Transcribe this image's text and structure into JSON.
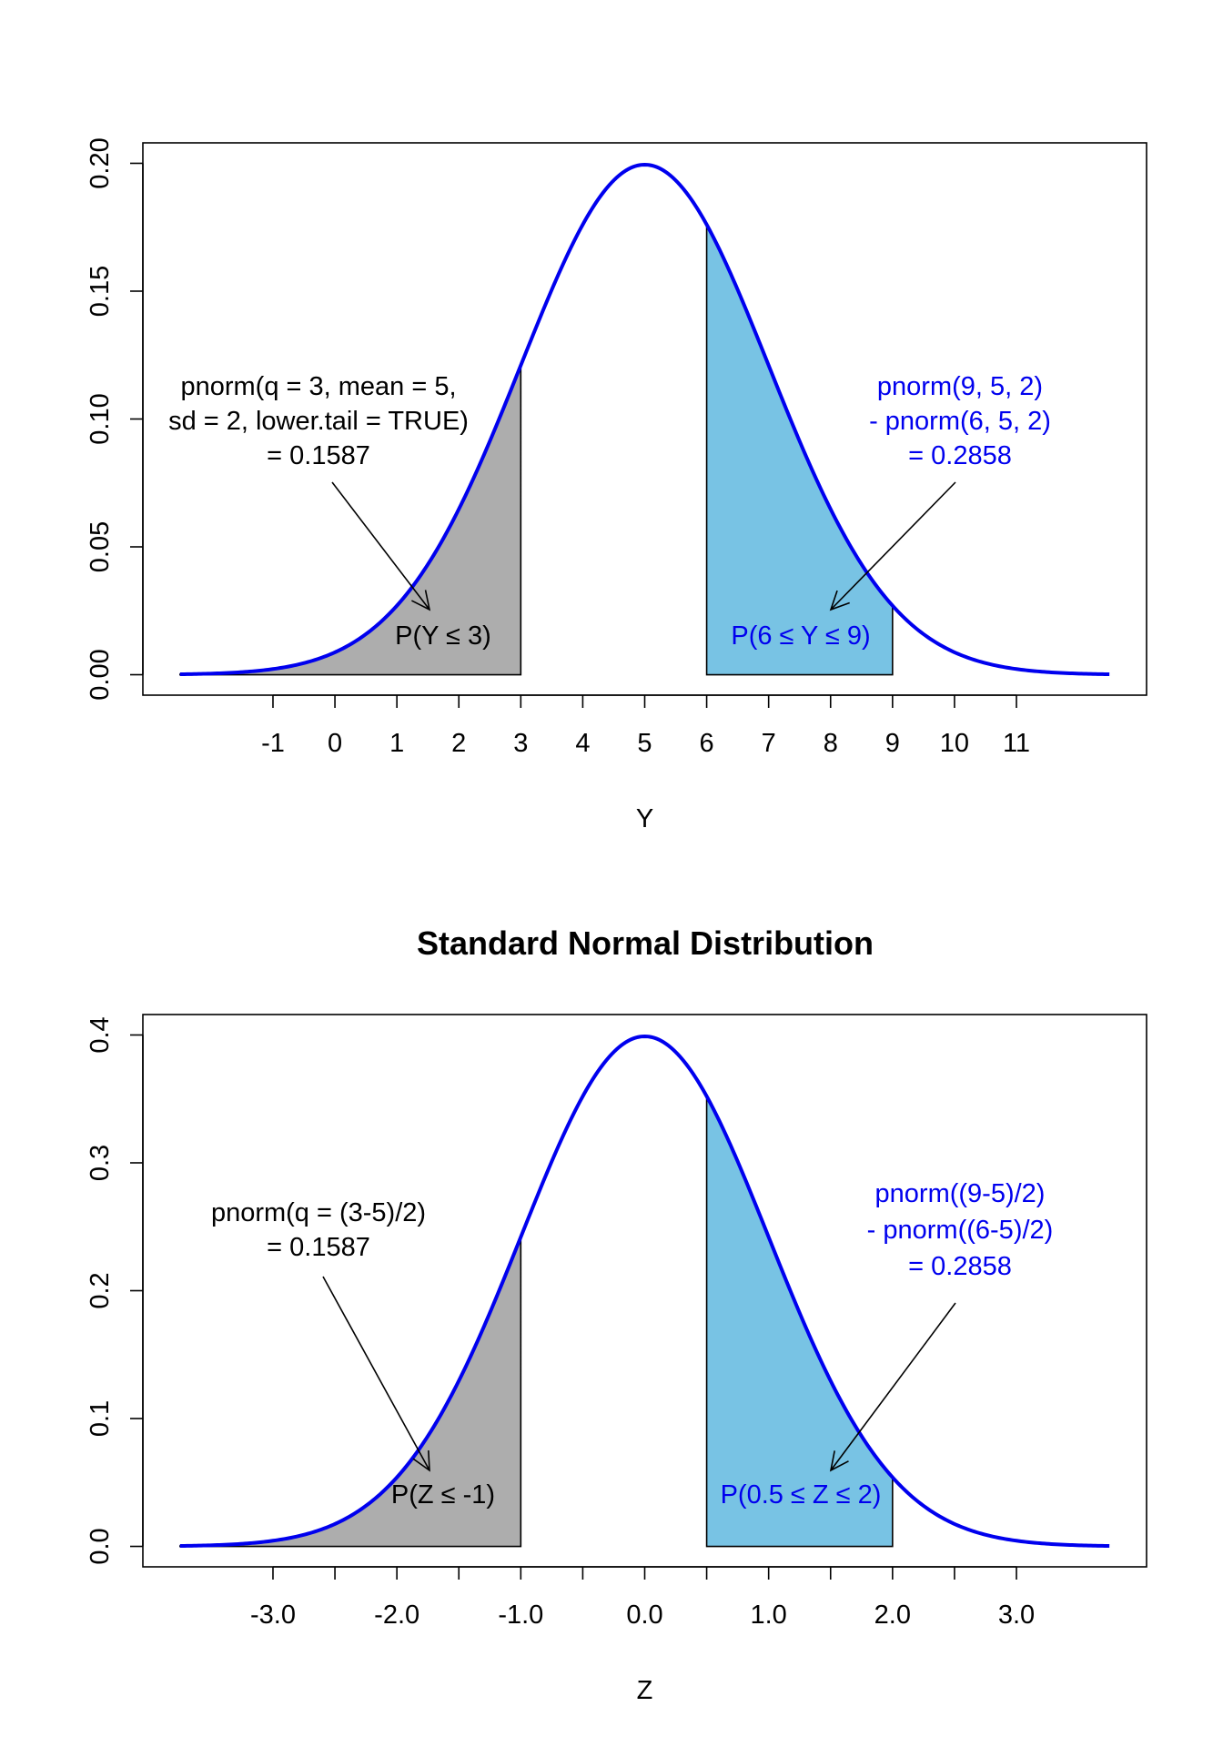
{
  "colors": {
    "curve": "#0000EE",
    "left_shade": "#ADADAD",
    "right_shade": "#78C3E4",
    "left_text": "#000000",
    "right_text": "#0000EE"
  },
  "chart_data": [
    {
      "type": "line",
      "title": "",
      "xlabel": "Y",
      "ylabel": "",
      "distribution": "normal",
      "mean": 5,
      "sd": 2,
      "xlim": [
        -2.5,
        12.5
      ],
      "ylim": [
        0,
        0.2
      ],
      "x_ticks": [
        -1,
        0,
        1,
        2,
        3,
        4,
        5,
        6,
        7,
        8,
        9,
        10,
        11
      ],
      "x_tick_labels": [
        "-1",
        "0",
        "1",
        "2",
        "3",
        "4",
        "5",
        "6",
        "7",
        "8",
        "9",
        "10",
        "11"
      ],
      "y_ticks": [
        0,
        0.05,
        0.1,
        0.15,
        0.2
      ],
      "y_tick_labels": [
        "0.00",
        "0.05",
        "0.10",
        "0.15",
        "0.20"
      ],
      "shaded_regions": [
        {
          "from": -2.5,
          "to": 3,
          "color": "gray",
          "label": "P(Y ≤ 3)",
          "value": 0.1587
        },
        {
          "from": 6,
          "to": 9,
          "color": "skyblue",
          "label": "P(6 ≤ Y ≤ 9)",
          "value": 0.2858
        }
      ],
      "annotations": {
        "left_lines": [
          "pnorm(q = 3, mean = 5,",
          "sd = 2, lower.tail = TRUE)",
          "= 0.1587"
        ],
        "right_lines": [
          "pnorm(9, 5, 2)",
          "- pnorm(6, 5, 2)",
          "= 0.2858"
        ],
        "left_label": "P(Y ≤ 3)",
        "right_label": "P(6 ≤ Y ≤ 9)"
      }
    },
    {
      "type": "line",
      "title": "Standard Normal Distribution",
      "xlabel": "Z",
      "ylabel": "",
      "distribution": "normal",
      "mean": 0,
      "sd": 1,
      "xlim": [
        -3.75,
        3.75
      ],
      "ylim": [
        0,
        0.4
      ],
      "x_ticks": [
        -3,
        -2.5,
        -2,
        -1.5,
        -1,
        -0.5,
        0,
        0.5,
        1,
        1.5,
        2,
        2.5,
        3
      ],
      "x_tick_labels": [
        "-3.0",
        "",
        "-2.0",
        "",
        "-1.0",
        "",
        "0.0",
        "",
        "1.0",
        "",
        "2.0",
        "",
        "3.0"
      ],
      "y_ticks": [
        0,
        0.1,
        0.2,
        0.3,
        0.4
      ],
      "y_tick_labels": [
        "0.0",
        "0.1",
        "0.2",
        "0.3",
        "0.4"
      ],
      "shaded_regions": [
        {
          "from": -3.75,
          "to": -1,
          "color": "gray",
          "label": "P(Z ≤ -1)",
          "value": 0.1587
        },
        {
          "from": 0.5,
          "to": 2,
          "color": "skyblue",
          "label": "P(0.5 ≤ Z ≤ 2)",
          "value": 0.2858
        }
      ],
      "annotations": {
        "left_lines": [
          "pnorm(q = (3-5)/2)",
          "= 0.1587"
        ],
        "right_lines": [
          "pnorm((9-5)/2)",
          "- pnorm((6-5)/2)",
          "= 0.2858"
        ],
        "left_label": "P(Z ≤ -1)",
        "right_label": "P(0.5 ≤ Z ≤ 2)"
      }
    }
  ]
}
